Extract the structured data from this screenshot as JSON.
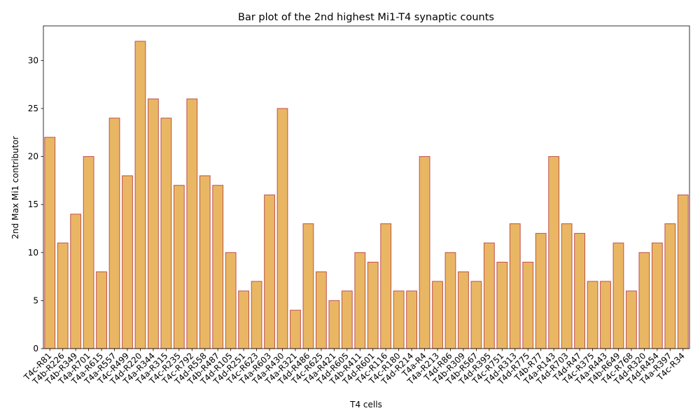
{
  "chart_data": {
    "type": "bar",
    "title": "Bar plot of the 2nd highest Mi1-T4 synaptic counts",
    "xlabel": "T4 cells",
    "ylabel": "2nd Max Mi1 contributor",
    "ylim": [
      0,
      33.6
    ],
    "yticks": [
      "0",
      "5",
      "10",
      "15",
      "20",
      "25",
      "30"
    ],
    "grid": false,
    "legend": "none",
    "bar_fill": "#e9b764",
    "bar_edge": "#c0504d",
    "categories": [
      "T4c-R81",
      "T4b-R226",
      "T4b-R349",
      "T4a-R701",
      "T4a-R615",
      "T4a-R557",
      "T4c-R499",
      "T4d-R220",
      "T4a-R344",
      "T4a-R315",
      "T4c-R235",
      "T4c-R792",
      "T4d-R558",
      "T4b-R487",
      "T4d-R105",
      "T4d-R251",
      "T4c-R623",
      "T4a-R603",
      "T4a-R430",
      "T4a-R321",
      "T4d-R486",
      "T4c-R625",
      "T4a-R421",
      "T4d-R605",
      "T4b-R411",
      "T4d-R601",
      "T4c-R116",
      "T4c-R180",
      "T4d-R214",
      "T4a-R4",
      "T4a-R213",
      "T4d-R86",
      "T4b-R309",
      "T4b-R567",
      "T4d-R395",
      "T4c-R751",
      "T4d-R313",
      "T4d-R775",
      "T4b-R77",
      "T4a-R143",
      "T4d-R703",
      "T4d-R47",
      "T4c-R375",
      "T4a-R443",
      "T4b-R649",
      "T4c-R768",
      "T4d-R320",
      "T4d-R454",
      "T4a-R397",
      "T4c-R34"
    ],
    "values": [
      22,
      11,
      14,
      20,
      8,
      24,
      18,
      32,
      26,
      24,
      17,
      26,
      18,
      17,
      10,
      6,
      7,
      16,
      25,
      4,
      13,
      8,
      5,
      6,
      10,
      9,
      13,
      6,
      6,
      20,
      7,
      10,
      8,
      7,
      11,
      9,
      13,
      9,
      12,
      20,
      13,
      12,
      7,
      7,
      11,
      6,
      10,
      11,
      13,
      16
    ]
  }
}
